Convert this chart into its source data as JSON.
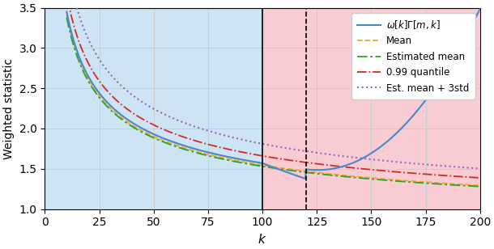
{
  "title": "",
  "xlabel": "$k$",
  "ylabel": "Weighted statistic",
  "xlim": [
    0,
    200
  ],
  "ylim": [
    1.0,
    3.5
  ],
  "yticks": [
    1.0,
    1.5,
    2.0,
    2.5,
    3.0,
    3.5
  ],
  "xticks": [
    0,
    25,
    50,
    75,
    100,
    125,
    150,
    175,
    200
  ],
  "bg_left_color": "#cde4f5",
  "bg_right_color": "#f9ccd3",
  "vline_solid_x": 100,
  "vline_dashed_x": 120,
  "n_total": 200,
  "k_start": 10,
  "line_colors": {
    "statistic": "#4a86c8",
    "mean": "#f5a623",
    "est_mean": "#2ca02c",
    "quantile": "#d62728",
    "est_mean_3std": "#9467bd"
  },
  "legend_labels": [
    "$\\omega[k]\\Gamma[m,k]$",
    "Mean",
    "Estimated mean",
    "0.99 quantile",
    "Est. mean + 3std"
  ],
  "figsize": [
    6.1,
    3.08
  ],
  "dpi": 100
}
